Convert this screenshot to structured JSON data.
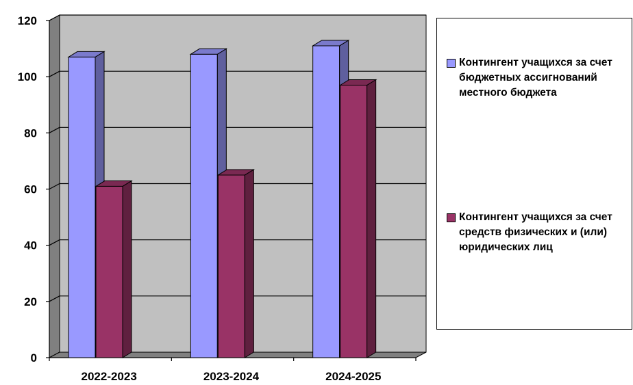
{
  "chart_data": {
    "type": "bar",
    "categories": [
      "2022-2023",
      "2023-2024",
      "2024-2025"
    ],
    "series": [
      {
        "name": "Контингент учащихся за счет бюджетных ассигнований местного бюджета",
        "values": [
          107,
          108,
          111
        ],
        "color": "#9999FF"
      },
      {
        "name": "Контингент учащихся за счет средств физических и (или) юридических лиц",
        "values": [
          61,
          65,
          97
        ],
        "color": "#993366"
      }
    ],
    "ylim": [
      0,
      120
    ],
    "yticks": [
      "0",
      "20",
      "40",
      "60",
      "80",
      "100",
      "120"
    ],
    "grid": true,
    "legend_position": "right",
    "style": "3d-clustered-column",
    "wall_color": "#C0C0C0"
  }
}
